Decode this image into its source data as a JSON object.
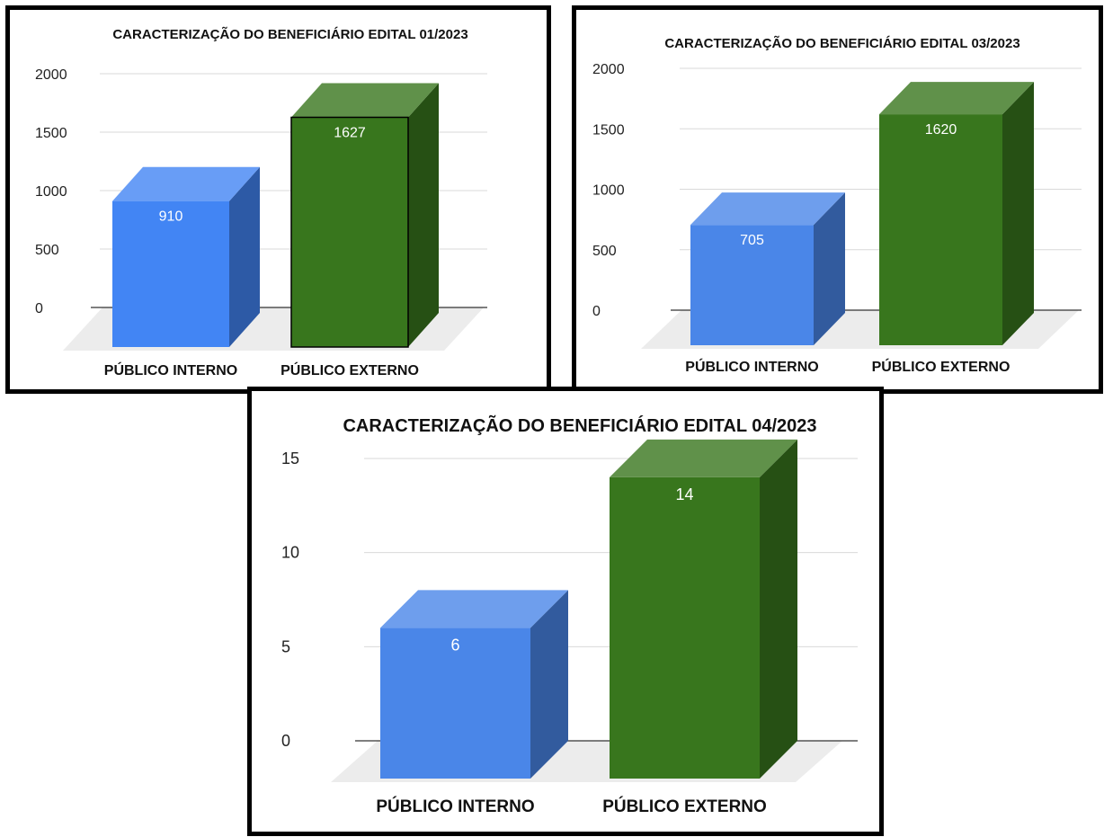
{
  "chart_data": [
    {
      "type": "bar",
      "title": "CARACTERIZAÇÃO DO BENEFICIÁRIO EDITAL 01/2023",
      "xlabel": "",
      "ylabel": "",
      "categories": [
        "PÚBLICO INTERNO",
        "PÚBLICO EXTERNO"
      ],
      "values": [
        910,
        1627
      ],
      "value_labels": [
        "910",
        "1627"
      ],
      "yticks": [
        "0",
        "500",
        "1000",
        "1500",
        "2000"
      ],
      "ylim": [
        0,
        2000
      ],
      "grid": true,
      "legend": "none",
      "style": "3d",
      "colors": [
        "#4285f4",
        "#38761d"
      ]
    },
    {
      "type": "bar",
      "title": "CARACTERIZAÇÃO DO BENEFICIÁRIO EDITAL 03/2023",
      "xlabel": "",
      "ylabel": "",
      "categories": [
        "PÚBLICO INTERNO",
        "PÚBLICO EXTERNO"
      ],
      "values": [
        705,
        1620
      ],
      "value_labels": [
        "705",
        "1620"
      ],
      "yticks": [
        "0",
        "500",
        "1000",
        "1500",
        "2000"
      ],
      "ylim": [
        0,
        2000
      ],
      "grid": true,
      "legend": "none",
      "style": "3d",
      "colors": [
        "#4a86e8",
        "#38761d"
      ]
    },
    {
      "type": "bar",
      "title": "CARACTERIZAÇÃO DO BENEFICIÁRIO EDITAL 04/2023",
      "xlabel": "",
      "ylabel": "",
      "categories": [
        "PÚBLICO INTERNO",
        "PÚBLICO EXTERNO"
      ],
      "values": [
        6,
        14
      ],
      "value_labels": [
        "6",
        "14"
      ],
      "yticks": [
        "0",
        "5",
        "10",
        "15"
      ],
      "ylim": [
        0,
        15
      ],
      "grid": true,
      "legend": "none",
      "style": "3d",
      "colors": [
        "#4a86e8",
        "#38761d"
      ]
    }
  ]
}
